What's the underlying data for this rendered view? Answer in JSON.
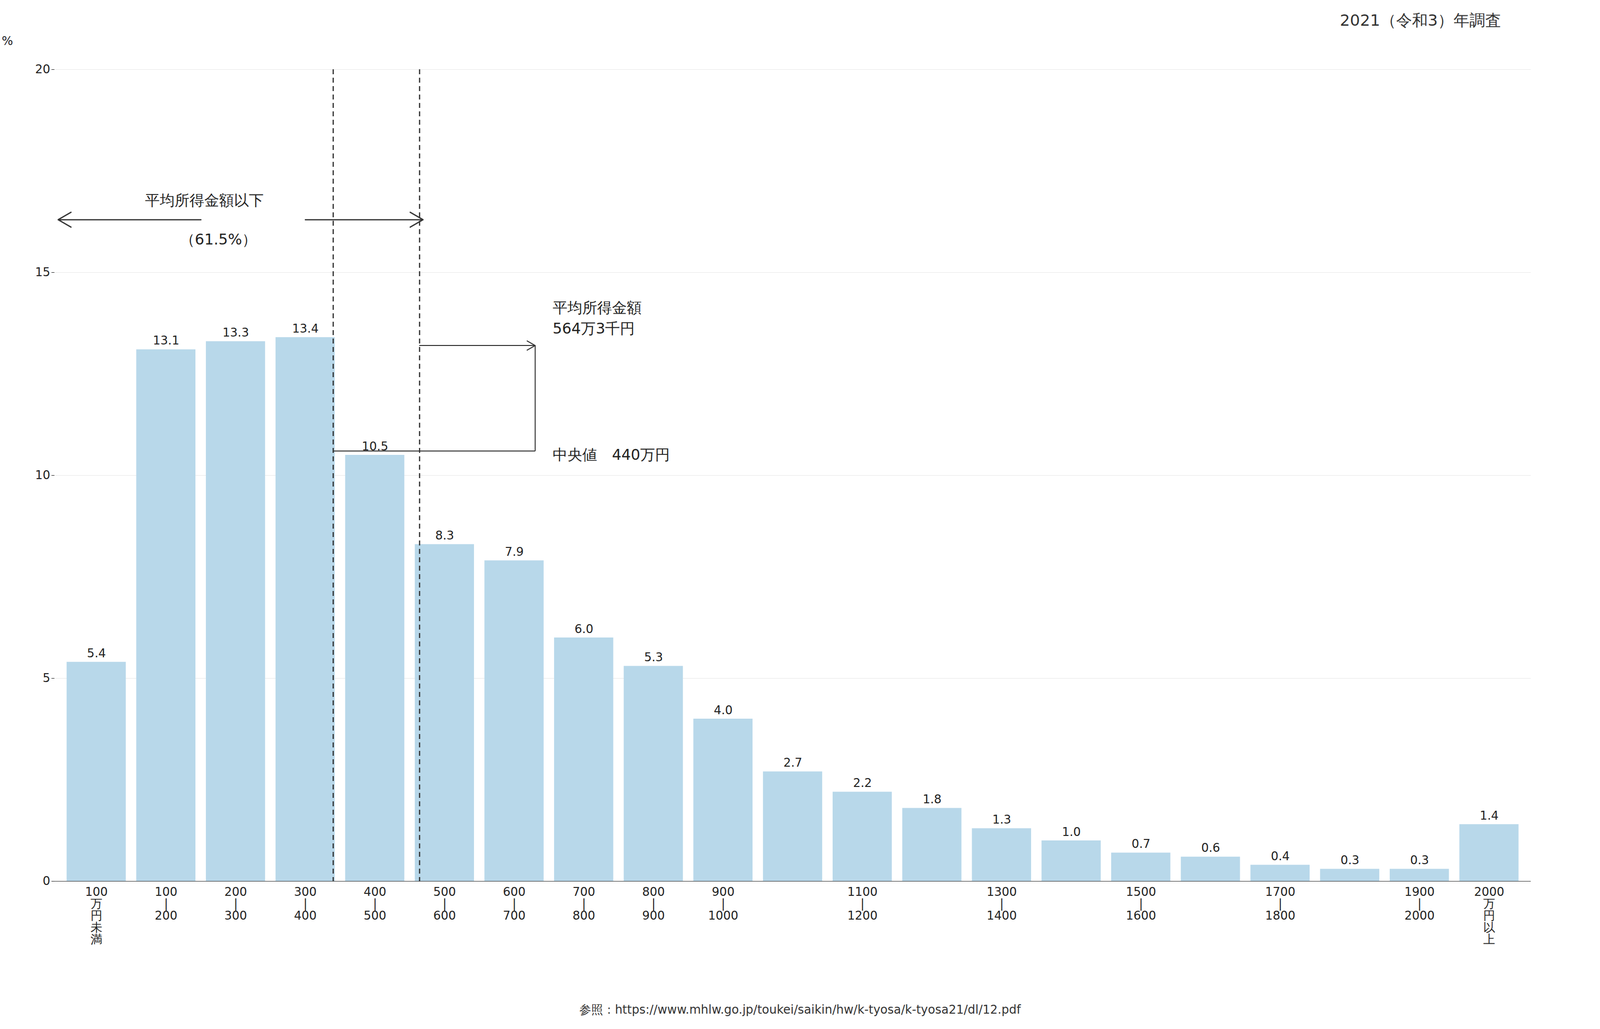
{
  "chart_data": {
    "type": "bar",
    "title": "2021（令和3）年調査",
    "ylabel": "%",
    "categories": [
      "100\n万\n円\n未\n満",
      "100\n|\n200",
      "200\n|\n300",
      "300\n|\n400",
      "400\n|\n500",
      "500\n|\n600",
      "600\n|\n700",
      "700\n|\n800",
      "800\n|\n900",
      "900\n|\n1000",
      null,
      "1100\n|\n1200",
      null,
      "1300\n|\n1400",
      null,
      "1500\n|\n1600",
      null,
      "1700\n|\n1800",
      null,
      "1900\n|\n2000",
      "2000\n万\n円\n以\n上"
    ],
    "values": [
      5.4,
      13.1,
      13.3,
      13.4,
      10.5,
      8.3,
      7.9,
      6.0,
      5.3,
      4.0,
      2.7,
      2.2,
      1.8,
      1.3,
      1.0,
      0.7,
      0.6,
      0.4,
      0.3,
      0.3,
      1.4
    ],
    "value_labels": [
      "5.4",
      "13.1",
      "13.3",
      "13.4",
      "10.5",
      "8.3",
      "7.9",
      "6.0",
      "5.3",
      "4.0",
      "2.7",
      "2.2",
      "1.8",
      "1.3",
      "1.0",
      "0.7",
      "0.6",
      "0.4",
      "0.3",
      "0.3",
      "1.4"
    ],
    "data_labels": true,
    "color": "#b8d8ea",
    "ylim": [
      0,
      20
    ],
    "yticks": [
      0,
      5,
      10,
      15,
      20
    ],
    "grid": true,
    "mean_line": {
      "x": 4.64,
      "label": "平均所得金額\n564万3千円"
    },
    "median_line": {
      "x": 3.4,
      "label": "中央値　440万円"
    },
    "annotations": [
      "平均所得金額以下",
      "（61.5%）"
    ],
    "caption": "参照：https://www.mhlw.go.jp/toukei/saikin/hw/k-tyosa/k-tyosa21/dl/12.pdf"
  }
}
